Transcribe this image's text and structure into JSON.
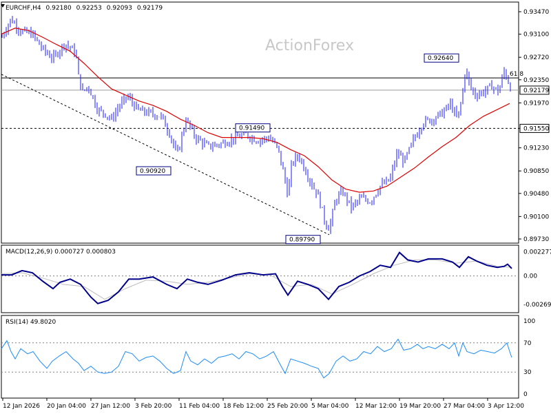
{
  "header": {
    "symbol": "EURCHF,H4",
    "open": "0.92180",
    "high": "0.92253",
    "low": "0.92093",
    "close": "0.92179"
  },
  "watermark": "ActionForex",
  "colors": {
    "candle": "#1a1aff",
    "ma": "#e00000",
    "macd": "#00008b",
    "signal": "#bdbdbd",
    "rsi": "#1a8cff",
    "grid": "#808080",
    "label_box": "#000080"
  },
  "chart_data": [
    {
      "type": "candlestick",
      "name": "price",
      "yticks": [
        "0.93470",
        "0.93100",
        "0.92720",
        "0.92350",
        "0.91970",
        "0.91550",
        "0.91230",
        "0.90850",
        "0.90480",
        "0.90100",
        "0.89730"
      ],
      "ytick_values": [
        0.9347,
        0.931,
        0.9272,
        0.9235,
        0.9197,
        0.9155,
        0.9123,
        0.9085,
        0.9048,
        0.901,
        0.8973
      ],
      "ylim": [
        0.8973,
        0.9347
      ],
      "xticks": [
        "12 Jan 2026",
        "20 Jan 04:00",
        "27 Jan 12:00",
        "3 Feb 20:00",
        "11 Feb 04:00",
        "18 Feb 12:00",
        "25 Feb 20:00",
        "5 Mar 04:00",
        "12 Mar 12:00",
        "19 Mar 20:00",
        "27 Mar 04:00",
        "3 Apr 12:00"
      ],
      "current_price": "0.92179",
      "current_value": 0.92179,
      "support_label": "0.91550",
      "support_value": 0.9155,
      "resistance_value": 0.9238,
      "fib_label": "61.8",
      "close_path": [
        [
          0,
          0.9305
        ],
        [
          14,
          0.9335
        ],
        [
          28,
          0.9315
        ],
        [
          45,
          0.931
        ],
        [
          60,
          0.9285
        ],
        [
          75,
          0.927
        ],
        [
          92,
          0.9295
        ],
        [
          108,
          0.928
        ],
        [
          112,
          0.924
        ],
        [
          118,
          0.9215
        ],
        [
          126,
          0.9225
        ],
        [
          140,
          0.9185
        ],
        [
          150,
          0.918
        ],
        [
          160,
          0.917
        ],
        [
          170,
          0.919
        ],
        [
          183,
          0.9208
        ],
        [
          198,
          0.9185
        ],
        [
          215,
          0.918
        ],
        [
          232,
          0.9175
        ],
        [
          245,
          0.9145
        ],
        [
          255,
          0.911
        ],
        [
          268,
          0.917
        ],
        [
          282,
          0.914
        ],
        [
          300,
          0.9125
        ],
        [
          320,
          0.913
        ],
        [
          340,
          0.914
        ],
        [
          355,
          0.9145
        ],
        [
          372,
          0.9135
        ],
        [
          390,
          0.914
        ],
        [
          402,
          0.912
        ],
        [
          410,
          0.908
        ],
        [
          416,
          0.9045
        ],
        [
          422,
          0.91
        ],
        [
          432,
          0.911
        ],
        [
          442,
          0.9085
        ],
        [
          452,
          0.906
        ],
        [
          460,
          0.9045
        ],
        [
          470,
          0.9
        ],
        [
          476,
          0.899
        ],
        [
          486,
          0.904
        ],
        [
          496,
          0.905
        ],
        [
          508,
          0.9025
        ],
        [
          522,
          0.904
        ],
        [
          536,
          0.9035
        ],
        [
          550,
          0.906
        ],
        [
          564,
          0.907
        ],
        [
          575,
          0.9115
        ],
        [
          585,
          0.91
        ],
        [
          598,
          0.9135
        ],
        [
          612,
          0.9165
        ],
        [
          625,
          0.917
        ],
        [
          640,
          0.918
        ],
        [
          652,
          0.9195
        ],
        [
          662,
          0.917
        ],
        [
          668,
          0.92
        ],
        [
          674,
          0.9255
        ],
        [
          680,
          0.9225
        ],
        [
          688,
          0.921
        ],
        [
          700,
          0.9215
        ],
        [
          712,
          0.9225
        ],
        [
          722,
          0.9215
        ],
        [
          730,
          0.925
        ],
        [
          736,
          0.9232
        ],
        [
          741,
          0.9218
        ]
      ],
      "ma_path": [
        [
          0,
          0.931
        ],
        [
          20,
          0.932
        ],
        [
          40,
          0.9316
        ],
        [
          60,
          0.9305
        ],
        [
          80,
          0.9293
        ],
        [
          100,
          0.9282
        ],
        [
          120,
          0.9262
        ],
        [
          140,
          0.924
        ],
        [
          160,
          0.922
        ],
        [
          180,
          0.921
        ],
        [
          200,
          0.92
        ],
        [
          220,
          0.9193
        ],
        [
          240,
          0.9183
        ],
        [
          260,
          0.917
        ],
        [
          280,
          0.916
        ],
        [
          300,
          0.9148
        ],
        [
          320,
          0.914
        ],
        [
          340,
          0.914
        ],
        [
          360,
          0.914
        ],
        [
          380,
          0.9138
        ],
        [
          400,
          0.9132
        ],
        [
          420,
          0.912
        ],
        [
          440,
          0.911
        ],
        [
          460,
          0.9092
        ],
        [
          480,
          0.907
        ],
        [
          500,
          0.9055
        ],
        [
          520,
          0.905
        ],
        [
          540,
          0.9052
        ],
        [
          560,
          0.906
        ],
        [
          580,
          0.9075
        ],
        [
          600,
          0.909
        ],
        [
          620,
          0.9108
        ],
        [
          640,
          0.9125
        ],
        [
          660,
          0.914
        ],
        [
          680,
          0.916
        ],
        [
          700,
          0.9175
        ],
        [
          720,
          0.9186
        ],
        [
          738,
          0.9196
        ]
      ],
      "annotations": [
        {
          "label": "0.92640",
          "value": 0.9264
        },
        {
          "label": "0.91490",
          "value": 0.9149
        },
        {
          "label": "0.90920",
          "value": 0.9092
        },
        {
          "label": "0.89790",
          "value": 0.8979
        }
      ],
      "trendline": [
        [
          0,
          0.9244
        ],
        [
          476,
          0.898
        ]
      ]
    },
    {
      "type": "line",
      "name": "macd",
      "title": "MACD(12,26,9) 0.000727 0.000803",
      "yticks": [
        "0.002277",
        "0.00",
        "-0.002693"
      ],
      "ytick_values": [
        0.002277,
        0.0,
        -0.002693
      ],
      "ylim": [
        -0.0032,
        0.0025
      ],
      "macd_path": [
        [
          0,
          0.0001
        ],
        [
          15,
          0.0001
        ],
        [
          30,
          0.0005
        ],
        [
          45,
          0.0003
        ],
        [
          60,
          -0.0005
        ],
        [
          75,
          -0.0012
        ],
        [
          85,
          -0.0006
        ],
        [
          100,
          -0.0003
        ],
        [
          115,
          -0.0008
        ],
        [
          130,
          -0.002
        ],
        [
          140,
          -0.0026
        ],
        [
          155,
          -0.0023
        ],
        [
          170,
          -0.0015
        ],
        [
          185,
          -0.0003
        ],
        [
          200,
          -0.0003
        ],
        [
          220,
          -0.0001
        ],
        [
          240,
          -0.0008
        ],
        [
          255,
          -0.0012
        ],
        [
          270,
          -0.0003
        ],
        [
          285,
          -0.0006
        ],
        [
          300,
          -0.0008
        ],
        [
          320,
          -0.0004
        ],
        [
          340,
          0.0001
        ],
        [
          360,
          0.0003
        ],
        [
          380,
          0.0001
        ],
        [
          398,
          0.0002
        ],
        [
          408,
          -0.001
        ],
        [
          416,
          -0.0018
        ],
        [
          430,
          -0.0005
        ],
        [
          445,
          -0.0008
        ],
        [
          460,
          -0.0012
        ],
        [
          475,
          -0.0022
        ],
        [
          490,
          -0.001
        ],
        [
          505,
          -0.0006
        ],
        [
          520,
          0.0
        ],
        [
          535,
          0.0004
        ],
        [
          550,
          0.001
        ],
        [
          565,
          0.0008
        ],
        [
          578,
          0.0022
        ],
        [
          590,
          0.0015
        ],
        [
          605,
          0.0013
        ],
        [
          620,
          0.0016
        ],
        [
          640,
          0.0016
        ],
        [
          655,
          0.0013
        ],
        [
          665,
          0.0008
        ],
        [
          678,
          0.0018
        ],
        [
          690,
          0.0014
        ],
        [
          705,
          0.001
        ],
        [
          720,
          0.0008
        ],
        [
          730,
          0.0009
        ],
        [
          735,
          0.0011
        ],
        [
          741,
          0.0007
        ]
      ],
      "signal_path": [
        [
          0,
          0.0002
        ],
        [
          30,
          0.0003
        ],
        [
          60,
          -0.0002
        ],
        [
          90,
          -0.0008
        ],
        [
          120,
          -0.001
        ],
        [
          150,
          -0.0022
        ],
        [
          180,
          -0.0012
        ],
        [
          210,
          -0.0004
        ],
        [
          240,
          -0.0005
        ],
        [
          270,
          -0.0008
        ],
        [
          300,
          -0.0006
        ],
        [
          330,
          -0.0002
        ],
        [
          360,
          0.0002
        ],
        [
          390,
          0.0001
        ],
        [
          420,
          -0.001
        ],
        [
          450,
          -0.0008
        ],
        [
          480,
          -0.0017
        ],
        [
          510,
          -0.0008
        ],
        [
          540,
          0.0002
        ],
        [
          570,
          0.001
        ],
        [
          600,
          0.0015
        ],
        [
          630,
          0.0015
        ],
        [
          660,
          0.0012
        ],
        [
          690,
          0.0014
        ],
        [
          720,
          0.0009
        ],
        [
          741,
          0.0008
        ]
      ]
    },
    {
      "type": "line",
      "name": "rsi",
      "title": "RSI(14) 49.8020",
      "yticks": [
        "100",
        "70",
        "30",
        "0"
      ],
      "ytick_values": [
        100,
        70,
        30,
        0
      ],
      "ylim": [
        0,
        100
      ],
      "rsi_path": [
        [
          0,
          62
        ],
        [
          8,
          73
        ],
        [
          14,
          58
        ],
        [
          20,
          48
        ],
        [
          28,
          62
        ],
        [
          38,
          55
        ],
        [
          46,
          58
        ],
        [
          56,
          45
        ],
        [
          66,
          35
        ],
        [
          74,
          45
        ],
        [
          84,
          52
        ],
        [
          94,
          58
        ],
        [
          104,
          48
        ],
        [
          112,
          42
        ],
        [
          120,
          32
        ],
        [
          130,
          38
        ],
        [
          140,
          30
        ],
        [
          150,
          28
        ],
        [
          160,
          30
        ],
        [
          170,
          38
        ],
        [
          180,
          58
        ],
        [
          190,
          55
        ],
        [
          200,
          45
        ],
        [
          210,
          50
        ],
        [
          220,
          52
        ],
        [
          230,
          45
        ],
        [
          240,
          35
        ],
        [
          250,
          28
        ],
        [
          260,
          32
        ],
        [
          268,
          58
        ],
        [
          275,
          45
        ],
        [
          285,
          40
        ],
        [
          295,
          48
        ],
        [
          305,
          42
        ],
        [
          315,
          50
        ],
        [
          325,
          52
        ],
        [
          335,
          55
        ],
        [
          345,
          48
        ],
        [
          355,
          58
        ],
        [
          365,
          55
        ],
        [
          375,
          48
        ],
        [
          385,
          52
        ],
        [
          395,
          58
        ],
        [
          405,
          40
        ],
        [
          412,
          28
        ],
        [
          420,
          48
        ],
        [
          430,
          45
        ],
        [
          440,
          42
        ],
        [
          450,
          38
        ],
        [
          460,
          35
        ],
        [
          468,
          22
        ],
        [
          476,
          28
        ],
        [
          486,
          45
        ],
        [
          496,
          52
        ],
        [
          506,
          45
        ],
        [
          516,
          48
        ],
        [
          526,
          58
        ],
        [
          536,
          55
        ],
        [
          546,
          65
        ],
        [
          556,
          58
        ],
        [
          566,
          62
        ],
        [
          576,
          75
        ],
        [
          584,
          60
        ],
        [
          594,
          62
        ],
        [
          604,
          68
        ],
        [
          612,
          62
        ],
        [
          620,
          65
        ],
        [
          630,
          62
        ],
        [
          640,
          68
        ],
        [
          650,
          62
        ],
        [
          658,
          70
        ],
        [
          664,
          52
        ],
        [
          670,
          70
        ],
        [
          676,
          58
        ],
        [
          686,
          55
        ],
        [
          696,
          60
        ],
        [
          706,
          58
        ],
        [
          716,
          56
        ],
        [
          726,
          62
        ],
        [
          734,
          70
        ],
        [
          738,
          58
        ],
        [
          741,
          50
        ]
      ]
    }
  ]
}
